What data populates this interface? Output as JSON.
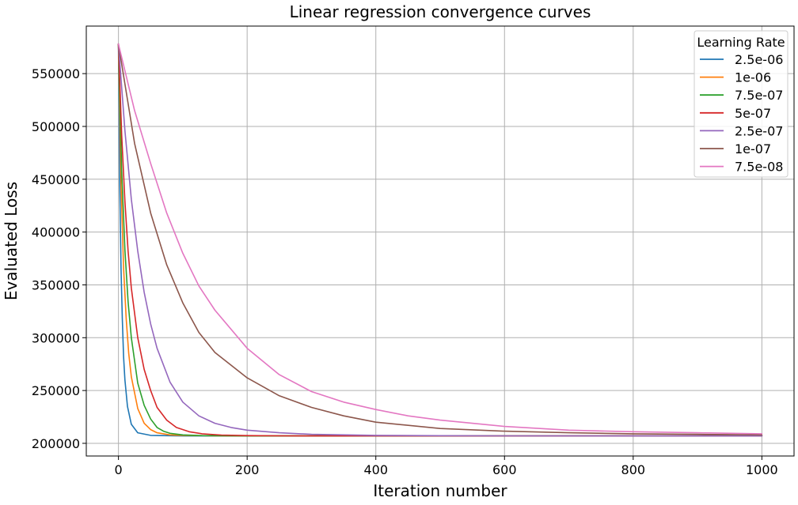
{
  "chart_data": {
    "type": "line",
    "title": "Linear regression convergence curves",
    "xlabel": "Iteration number",
    "ylabel": "Evaluated Loss",
    "xlim": [
      -50,
      1050
    ],
    "ylim": [
      188000,
      595000
    ],
    "xticks": [
      0,
      200,
      400,
      600,
      800,
      1000
    ],
    "xtick_labels": [
      "0",
      "200",
      "400",
      "600",
      "800",
      "1000"
    ],
    "yticks": [
      200000,
      250000,
      300000,
      350000,
      400000,
      450000,
      500000,
      550000
    ],
    "ytick_labels": [
      "200000",
      "250000",
      "300000",
      "350000",
      "400000",
      "450000",
      "500000",
      "550000"
    ],
    "grid": true,
    "legend": {
      "title": "Learning Rate",
      "placement": "top-right"
    },
    "series": [
      {
        "name": "2.5e-06",
        "color": "#1f77b4",
        "x": [
          0,
          2,
          4,
          6,
          8,
          10,
          14,
          20,
          30,
          50,
          100,
          200,
          400,
          600,
          800,
          1000
        ],
        "y": [
          578000,
          444000,
          365000,
          318000,
          282000,
          260000,
          235000,
          218000,
          210000,
          207500,
          207000,
          207000,
          207000,
          207000,
          207000,
          207000
        ]
      },
      {
        "name": "1e-06",
        "color": "#ff7f0e",
        "x": [
          0,
          4,
          8,
          12,
          16,
          20,
          30,
          40,
          50,
          60,
          80,
          100,
          150,
          200,
          400,
          600,
          800,
          1000
        ],
        "y": [
          578000,
          445000,
          366000,
          318000,
          285000,
          263000,
          233000,
          219000,
          213000,
          210000,
          208000,
          207500,
          207100,
          207000,
          207000,
          207000,
          207000,
          207000
        ]
      },
      {
        "name": "7.5e-07",
        "color": "#2ca02c",
        "x": [
          0,
          5,
          10,
          15,
          20,
          30,
          40,
          50,
          60,
          70,
          80,
          100,
          130,
          200,
          400,
          600,
          800,
          1000
        ],
        "y": [
          578000,
          458000,
          383000,
          334000,
          300000,
          257000,
          236000,
          223000,
          215000,
          211500,
          209500,
          208000,
          207300,
          207000,
          207000,
          207000,
          207000,
          207000
        ]
      },
      {
        "name": "5e-07",
        "color": "#d62728",
        "x": [
          0,
          5,
          10,
          15,
          20,
          30,
          40,
          50,
          60,
          75,
          90,
          110,
          130,
          160,
          200,
          260,
          400,
          600,
          800,
          1000
        ],
        "y": [
          578000,
          492000,
          429000,
          382000,
          347000,
          300000,
          270000,
          250000,
          234000,
          222000,
          215000,
          211000,
          209000,
          207800,
          207300,
          207100,
          207000,
          207000,
          207000,
          207000
        ]
      },
      {
        "name": "2.5e-07",
        "color": "#9467bd",
        "x": [
          0,
          10,
          20,
          30,
          40,
          50,
          60,
          80,
          100,
          125,
          150,
          175,
          200,
          250,
          300,
          400,
          500,
          600,
          800,
          1000
        ],
        "y": [
          578000,
          496000,
          431000,
          382000,
          343000,
          313000,
          290000,
          258000,
          239000,
          226000,
          219000,
          215000,
          212500,
          210000,
          208500,
          207500,
          207200,
          207100,
          207000,
          207000
        ]
      },
      {
        "name": "1e-07",
        "color": "#8c564b",
        "x": [
          0,
          25,
          50,
          75,
          100,
          125,
          150,
          200,
          250,
          300,
          350,
          400,
          500,
          600,
          700,
          800,
          900,
          1000
        ],
        "y": [
          578000,
          484000,
          418000,
          369000,
          333000,
          305000,
          286000,
          262000,
          245000,
          234000,
          226000,
          220000,
          214000,
          211500,
          210000,
          209000,
          208500,
          208000
        ]
      },
      {
        "name": "7.5e-08",
        "color": "#e377c2",
        "x": [
          0,
          25,
          50,
          75,
          100,
          125,
          150,
          200,
          250,
          300,
          350,
          400,
          450,
          500,
          600,
          700,
          800,
          900,
          1000
        ],
        "y": [
          578000,
          515000,
          465000,
          418000,
          380000,
          349000,
          326000,
          290000,
          265000,
          249000,
          239000,
          232000,
          226000,
          222000,
          216000,
          212500,
          211000,
          210000,
          209000
        ]
      }
    ]
  }
}
